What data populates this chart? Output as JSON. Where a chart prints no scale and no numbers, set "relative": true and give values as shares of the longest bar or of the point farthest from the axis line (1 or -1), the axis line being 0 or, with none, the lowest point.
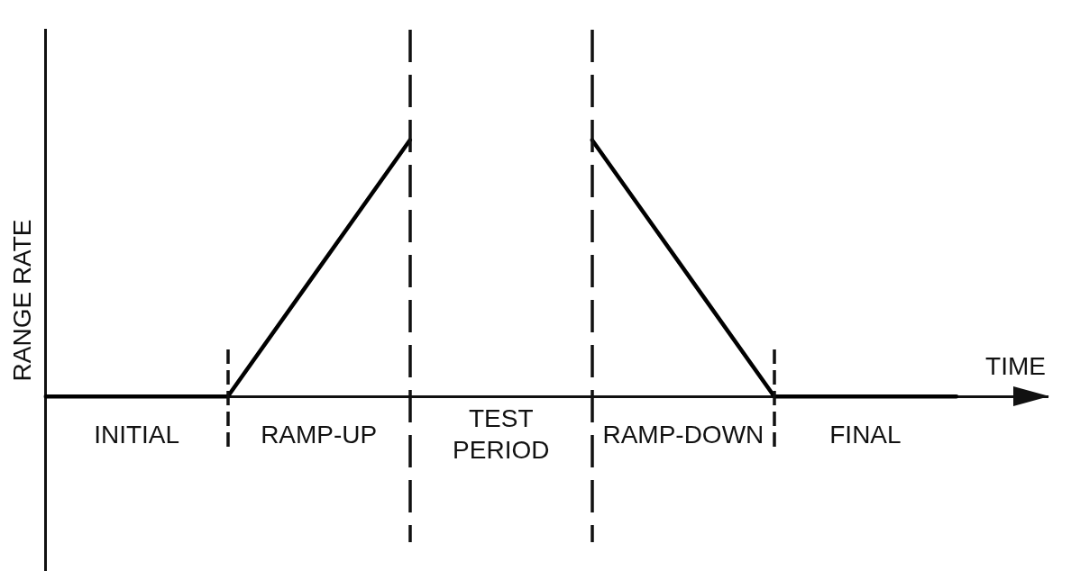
{
  "chart_data": {
    "type": "line",
    "xlabel": "TIME",
    "ylabel": "RANGE RATE",
    "categories": [
      null,
      "INITIAL",
      null,
      "RAMP-UP",
      null,
      "TEST PERIOD",
      null,
      "RAMP-DOWN",
      null,
      "FINAL",
      null,
      null
    ],
    "values": [
      0,
      0,
      0,
      0.5,
      1,
      null,
      1,
      0.5,
      0,
      0,
      0,
      null
    ],
    "color": "#000000",
    "relative": true,
    "marker": "none"
  }
}
